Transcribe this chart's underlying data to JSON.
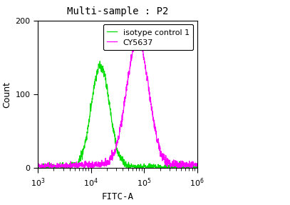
{
  "title": "Multi-sample : P2",
  "xlabel": "FITC-A",
  "ylabel": "Count",
  "xlim_log": [
    3,
    6
  ],
  "ylim": [
    0,
    200
  ],
  "yticks": [
    0,
    100,
    200
  ],
  "legend_labels": [
    "isotype control 1",
    "CY5637"
  ],
  "legend_colors": [
    "#00dd00",
    "#ff00ff"
  ],
  "green_peak_log": 4.18,
  "green_peak_height": 138,
  "green_sigma_log": 0.17,
  "magenta_peak_log": 4.88,
  "magenta_peak_height": 172,
  "magenta_sigma_log": 0.21,
  "background_color": "#ffffff",
  "title_fontsize": 10,
  "axis_fontsize": 9,
  "legend_fontsize": 8,
  "tick_fontsize": 8,
  "line_width": 0.9,
  "noise_scale_green": 4.5,
  "noise_scale_magenta": 4.0,
  "seed": 12
}
